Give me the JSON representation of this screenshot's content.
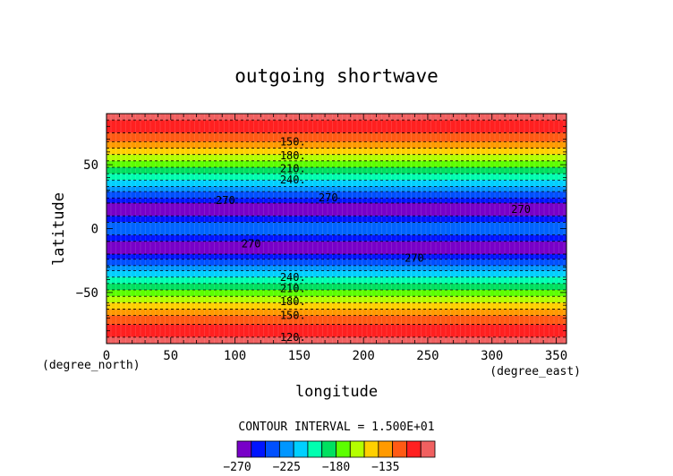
{
  "chart_data": {
    "type": "heatmap",
    "title": "outgoing shortwave",
    "xlabel": "longitude",
    "ylabel": "latitude",
    "x_units": "(degree_east)",
    "y_units": "(degree_north)",
    "xlim": [
      0,
      358
    ],
    "ylim": [
      -90,
      90
    ],
    "x_ticks": [
      "0",
      "50",
      "100",
      "150",
      "200",
      "250",
      "300",
      "350"
    ],
    "x_tick_values": [
      0,
      50,
      100,
      150,
      200,
      250,
      300,
      350
    ],
    "y_ticks": [
      "50",
      "0",
      "−50"
    ],
    "y_tick_values": [
      50,
      0,
      -50
    ],
    "contour_interval_text": "CONTOUR INTERVAL = 1.500E+01",
    "bands": [
      {
        "y0": 90,
        "y1": 85,
        "color": "#f06060"
      },
      {
        "y0": 85,
        "y1": 75,
        "color": "#ff2020"
      },
      {
        "y0": 75,
        "y1": 68,
        "color": "#ff5a14"
      },
      {
        "y0": 68,
        "y1": 63,
        "color": "#ff9a00"
      },
      {
        "y0": 63,
        "y1": 58,
        "color": "#ffd000"
      },
      {
        "y0": 58,
        "y1": 53,
        "color": "#b4ff00"
      },
      {
        "y0": 53,
        "y1": 48,
        "color": "#5cff00"
      },
      {
        "y0": 48,
        "y1": 43,
        "color": "#00e060"
      },
      {
        "y0": 43,
        "y1": 38,
        "color": "#00ffb0"
      },
      {
        "y0": 38,
        "y1": 33,
        "color": "#00d0ff"
      },
      {
        "y0": 33,
        "y1": 29,
        "color": "#0096ff"
      },
      {
        "y0": 29,
        "y1": 24,
        "color": "#0050ff"
      },
      {
        "y0": 24,
        "y1": 20,
        "color": "#0014ff"
      },
      {
        "y0": 20,
        "y1": 10,
        "color": "#7800c8"
      },
      {
        "y0": 10,
        "y1": 5,
        "color": "#0014ff"
      },
      {
        "y0": 5,
        "y1": -5,
        "color": "#0064ff"
      },
      {
        "y0": -5,
        "y1": -10,
        "color": "#0014ff"
      },
      {
        "y0": -10,
        "y1": -20,
        "color": "#7800c8"
      },
      {
        "y0": -20,
        "y1": -24,
        "color": "#0014ff"
      },
      {
        "y0": -24,
        "y1": -29,
        "color": "#0050ff"
      },
      {
        "y0": -29,
        "y1": -33,
        "color": "#0096ff"
      },
      {
        "y0": -33,
        "y1": -38,
        "color": "#00d0ff"
      },
      {
        "y0": -38,
        "y1": -43,
        "color": "#00ffb0"
      },
      {
        "y0": -43,
        "y1": -48,
        "color": "#00e060"
      },
      {
        "y0": -48,
        "y1": -53,
        "color": "#5cff00"
      },
      {
        "y0": -53,
        "y1": -58,
        "color": "#b4ff00"
      },
      {
        "y0": -58,
        "y1": -63,
        "color": "#ffd000"
      },
      {
        "y0": -63,
        "y1": -68,
        "color": "#ff9a00"
      },
      {
        "y0": -68,
        "y1": -75,
        "color": "#ff5a14"
      },
      {
        "y0": -75,
        "y1": -85,
        "color": "#ff2020"
      },
      {
        "y0": -85,
        "y1": -90,
        "color": "#f06060"
      }
    ],
    "contour_labels": [
      {
        "text": "150.",
        "x": 135,
        "y": 68
      },
      {
        "text": "180.",
        "x": 135,
        "y": 57
      },
      {
        "text": "210.",
        "x": 135,
        "y": 47
      },
      {
        "text": "240.",
        "x": 135,
        "y": 38
      },
      {
        "text": "270",
        "x": 85,
        "y": 22
      },
      {
        "text": "270",
        "x": 165,
        "y": 24
      },
      {
        "text": "270",
        "x": 315,
        "y": 15
      },
      {
        "text": "270",
        "x": 105,
        "y": -12
      },
      {
        "text": "270",
        "x": 232,
        "y": -23
      },
      {
        "text": "240.",
        "x": 135,
        "y": -38
      },
      {
        "text": "210.",
        "x": 135,
        "y": -47
      },
      {
        "text": "180.",
        "x": 135,
        "y": -57
      },
      {
        "text": "150.",
        "x": 135,
        "y": -68
      },
      {
        "text": "120.",
        "x": 135,
        "y": -85
      }
    ],
    "colorbar": {
      "colors": [
        "#7800c8",
        "#0014ff",
        "#0050ff",
        "#0096ff",
        "#00d0ff",
        "#00ffb0",
        "#00e060",
        "#5cff00",
        "#b4ff00",
        "#ffd000",
        "#ff9a00",
        "#ff5a14",
        "#ff2020",
        "#f06060"
      ],
      "labels": [
        "−270",
        "−225",
        "−180",
        "−135"
      ],
      "label_index": [
        0.0,
        0.25,
        0.5,
        0.75
      ]
    }
  }
}
